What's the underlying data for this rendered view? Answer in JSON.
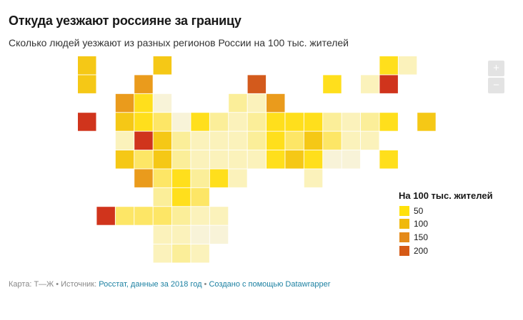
{
  "title": "Откуда уезжают россияне за границу",
  "subtitle": "Сколько людей уезжают из разных регионов России на 100 тыс. жителей",
  "zoom": {
    "in_label": "+",
    "out_label": "−"
  },
  "legend": {
    "title": "На 100 тыс. жителей",
    "items": [
      {
        "label": "50",
        "color": "#ffe10a"
      },
      {
        "label": "100",
        "color": "#f0b90c"
      },
      {
        "label": "150",
        "color": "#e48a1a"
      },
      {
        "label": "200",
        "color": "#d55a16"
      }
    ]
  },
  "footer": {
    "prefix": "Карта: Т—Ж • Источник: ",
    "source": "Росстат, данные за 2018 год",
    "sep": " • ",
    "credit": "Создано с помощью Datawrapper"
  },
  "palette": {
    "a": "#f8f3d8",
    "b": "#fbf2bb",
    "c": "#fbee99",
    "d": "#fde666",
    "e": "#ffdf1c",
    "f": "#f5c816",
    "g": "#ea9b1c",
    "h": "#d35a1c",
    "i": "#d0341c"
  },
  "tiles": [
    {
      "col": 0,
      "row": 0,
      "level": "f"
    },
    {
      "col": 4,
      "row": 0,
      "level": "f"
    },
    {
      "col": 16,
      "row": 0,
      "level": "e"
    },
    {
      "col": 17,
      "row": 0,
      "level": "b"
    },
    {
      "col": 0,
      "row": 1,
      "level": "f"
    },
    {
      "col": 3,
      "row": 1,
      "level": "g"
    },
    {
      "col": 9,
      "row": 1,
      "level": "h"
    },
    {
      "col": 13,
      "row": 1,
      "level": "e"
    },
    {
      "col": 15,
      "row": 1,
      "level": "b"
    },
    {
      "col": 16,
      "row": 1,
      "level": "i"
    },
    {
      "col": 2,
      "row": 2,
      "level": "g"
    },
    {
      "col": 3,
      "row": 2,
      "level": "e"
    },
    {
      "col": 4,
      "row": 2,
      "level": "a"
    },
    {
      "col": 8,
      "row": 2,
      "level": "c"
    },
    {
      "col": 9,
      "row": 2,
      "level": "b"
    },
    {
      "col": 10,
      "row": 2,
      "level": "g"
    },
    {
      "col": 0,
      "row": 3,
      "level": "i"
    },
    {
      "col": 2,
      "row": 3,
      "level": "f"
    },
    {
      "col": 3,
      "row": 3,
      "level": "e"
    },
    {
      "col": 4,
      "row": 3,
      "level": "d"
    },
    {
      "col": 5,
      "row": 3,
      "level": "a"
    },
    {
      "col": 6,
      "row": 3,
      "level": "e"
    },
    {
      "col": 7,
      "row": 3,
      "level": "c"
    },
    {
      "col": 8,
      "row": 3,
      "level": "b"
    },
    {
      "col": 9,
      "row": 3,
      "level": "c"
    },
    {
      "col": 10,
      "row": 3,
      "level": "e"
    },
    {
      "col": 11,
      "row": 3,
      "level": "e"
    },
    {
      "col": 12,
      "row": 3,
      "level": "e"
    },
    {
      "col": 13,
      "row": 3,
      "level": "c"
    },
    {
      "col": 14,
      "row": 3,
      "level": "b"
    },
    {
      "col": 15,
      "row": 3,
      "level": "c"
    },
    {
      "col": 16,
      "row": 3,
      "level": "e"
    },
    {
      "col": 18,
      "row": 3,
      "level": "f"
    },
    {
      "col": 2,
      "row": 4,
      "level": "b"
    },
    {
      "col": 3,
      "row": 4,
      "level": "i"
    },
    {
      "col": 4,
      "row": 4,
      "level": "f"
    },
    {
      "col": 5,
      "row": 4,
      "level": "c"
    },
    {
      "col": 6,
      "row": 4,
      "level": "b"
    },
    {
      "col": 7,
      "row": 4,
      "level": "b"
    },
    {
      "col": 8,
      "row": 4,
      "level": "b"
    },
    {
      "col": 9,
      "row": 4,
      "level": "c"
    },
    {
      "col": 10,
      "row": 4,
      "level": "e"
    },
    {
      "col": 11,
      "row": 4,
      "level": "d"
    },
    {
      "col": 12,
      "row": 4,
      "level": "f"
    },
    {
      "col": 13,
      "row": 4,
      "level": "d"
    },
    {
      "col": 14,
      "row": 4,
      "level": "b"
    },
    {
      "col": 15,
      "row": 4,
      "level": "b"
    },
    {
      "col": 2,
      "row": 5,
      "level": "f"
    },
    {
      "col": 3,
      "row": 5,
      "level": "d"
    },
    {
      "col": 4,
      "row": 5,
      "level": "f"
    },
    {
      "col": 5,
      "row": 5,
      "level": "c"
    },
    {
      "col": 6,
      "row": 5,
      "level": "b"
    },
    {
      "col": 7,
      "row": 5,
      "level": "b"
    },
    {
      "col": 8,
      "row": 5,
      "level": "b"
    },
    {
      "col": 9,
      "row": 5,
      "level": "b"
    },
    {
      "col": 10,
      "row": 5,
      "level": "e"
    },
    {
      "col": 11,
      "row": 5,
      "level": "f"
    },
    {
      "col": 12,
      "row": 5,
      "level": "e"
    },
    {
      "col": 13,
      "row": 5,
      "level": "a"
    },
    {
      "col": 14,
      "row": 5,
      "level": "a"
    },
    {
      "col": 16,
      "row": 5,
      "level": "e"
    },
    {
      "col": 3,
      "row": 6,
      "level": "g"
    },
    {
      "col": 4,
      "row": 6,
      "level": "d"
    },
    {
      "col": 5,
      "row": 6,
      "level": "e"
    },
    {
      "col": 6,
      "row": 6,
      "level": "c"
    },
    {
      "col": 7,
      "row": 6,
      "level": "e"
    },
    {
      "col": 8,
      "row": 6,
      "level": "b"
    },
    {
      "col": 12,
      "row": 6,
      "level": "b"
    },
    {
      "col": 4,
      "row": 7,
      "level": "c"
    },
    {
      "col": 5,
      "row": 7,
      "level": "e"
    },
    {
      "col": 6,
      "row": 7,
      "level": "d"
    },
    {
      "col": 1,
      "row": 8,
      "level": "i"
    },
    {
      "col": 2,
      "row": 8,
      "level": "d"
    },
    {
      "col": 3,
      "row": 8,
      "level": "d"
    },
    {
      "col": 4,
      "row": 8,
      "level": "d"
    },
    {
      "col": 5,
      "row": 8,
      "level": "c"
    },
    {
      "col": 6,
      "row": 8,
      "level": "b"
    },
    {
      "col": 7,
      "row": 8,
      "level": "b"
    },
    {
      "col": 4,
      "row": 9,
      "level": "b"
    },
    {
      "col": 5,
      "row": 9,
      "level": "b"
    },
    {
      "col": 6,
      "row": 9,
      "level": "a"
    },
    {
      "col": 7,
      "row": 9,
      "level": "a"
    },
    {
      "col": 4,
      "row": 10,
      "level": "b"
    },
    {
      "col": 5,
      "row": 10,
      "level": "c"
    },
    {
      "col": 6,
      "row": 10,
      "level": "b"
    }
  ]
}
